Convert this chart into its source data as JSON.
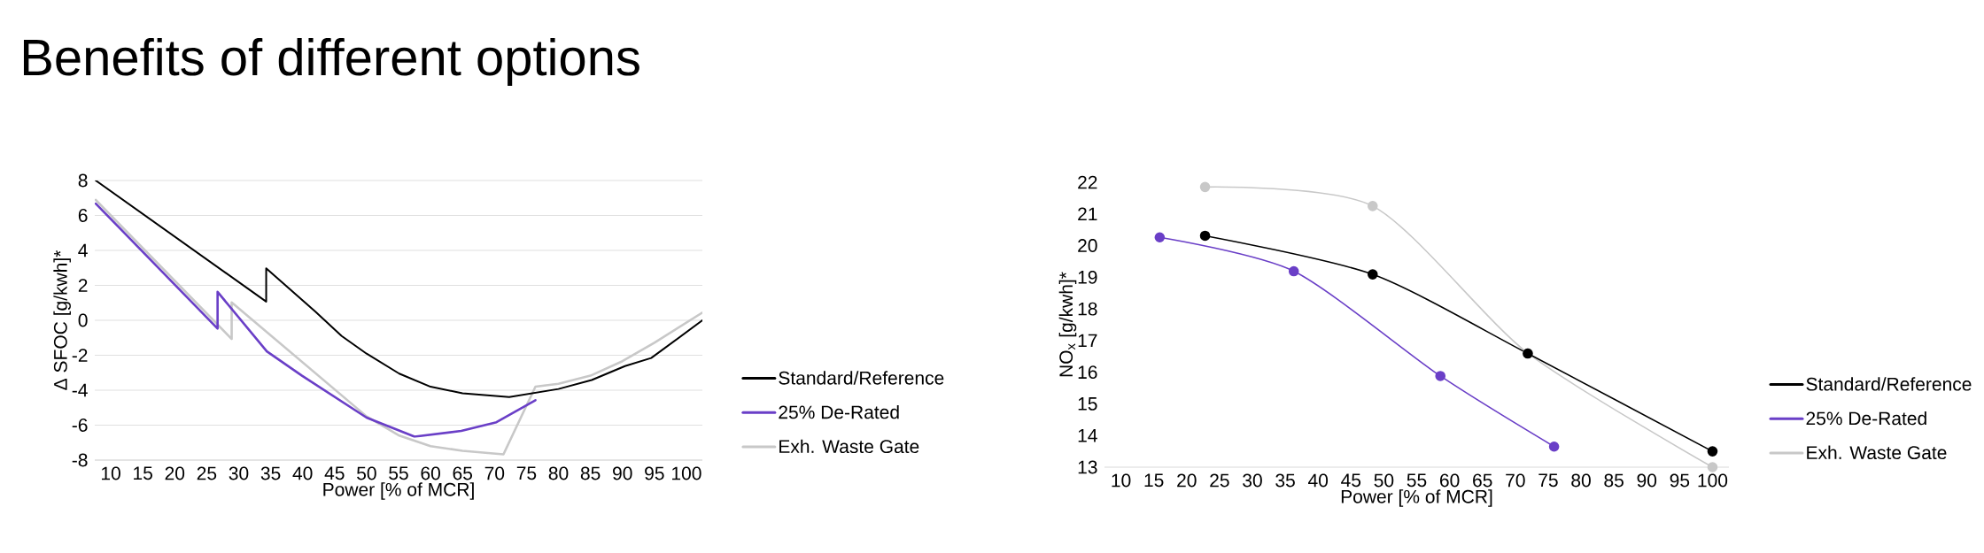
{
  "chart_data": [
    {
      "type": "line",
      "title": "Benefits of different options",
      "xlabel": "Power [% of MCR]",
      "ylabel": "Δ SFOC [g/kwh]*",
      "xlim": [
        7.5,
        102.5
      ],
      "ylim": [
        -8,
        8
      ],
      "xticks": [
        10,
        15,
        20,
        25,
        30,
        35,
        40,
        45,
        50,
        55,
        60,
        65,
        70,
        75,
        80,
        85,
        90,
        95,
        100
      ],
      "yticks": [
        -8,
        -6,
        -4,
        -2,
        0,
        2,
        4,
        6,
        8
      ],
      "grid": "y",
      "legend": "right",
      "marker": "none",
      "series": [
        {
          "name": "Standard/Reference",
          "color": "#000000",
          "x": [
            7.65,
            34.3,
            34.3,
            42,
            46.1,
            50,
            55.1,
            60,
            65,
            72.3,
            80,
            85.2,
            90.4,
            94.5,
            102.5
          ],
          "values": [
            8,
            1.07,
            2.97,
            0.49,
            -0.9,
            -1.91,
            -3.05,
            -3.8,
            -4.18,
            -4.39,
            -3.93,
            -3.42,
            -2.62,
            -2.16,
            0
          ]
        },
        {
          "name": "25% De-Rated",
          "color": "#6a3fc7",
          "x": [
            7.65,
            26.7,
            26.7,
            34.4,
            39.9,
            50,
            57.5,
            64.8,
            70.3,
            76.4
          ],
          "values": [
            6.68,
            -0.47,
            1.63,
            -1.78,
            -3.17,
            -5.57,
            -6.66,
            -6.33,
            -5.83,
            -4.57
          ]
        },
        {
          "name": "Exh. Waste Gate",
          "color": "#c8c8c8",
          "x": [
            7.65,
            28.9,
            28.9,
            50,
            55,
            60,
            65,
            71.4,
            76.4,
            80,
            85,
            90,
            95,
            102.5
          ],
          "values": [
            6.89,
            -1.07,
            1.02,
            -5.5,
            -6.58,
            -7.2,
            -7.47,
            -7.67,
            -3.8,
            -3.63,
            -3.17,
            -2.34,
            -1.28,
            0.44
          ]
        }
      ]
    },
    {
      "type": "line",
      "xlabel": "Power [% of MCR]",
      "ylabel": "NO$_{x}$ [g/kwh]*",
      "xlim": [
        7.5,
        102.5
      ],
      "ylim": [
        13,
        22
      ],
      "xticks": [
        10,
        15,
        20,
        25,
        30,
        35,
        40,
        45,
        50,
        55,
        60,
        65,
        70,
        75,
        80,
        85,
        90,
        95,
        100
      ],
      "yticks": [
        13,
        14,
        15,
        16,
        17,
        18,
        19,
        20,
        21,
        22
      ],
      "grid": false,
      "legend": "right",
      "marker": "circle",
      "series": [
        {
          "name": "Standard/Reference",
          "color": "#000000",
          "x": [
            22.8,
            48.3,
            71.9,
            100
          ],
          "values": [
            20.31,
            19.09,
            16.59,
            13.5
          ]
        },
        {
          "name": "25% De-Rated",
          "color": "#6a3fc7",
          "x": [
            15.9,
            36.3,
            58.6,
            75.9
          ],
          "values": [
            20.26,
            19.19,
            15.88,
            13.65
          ]
        },
        {
          "name": "Exh. Waste Gate",
          "color": "#c8c8c8",
          "x": [
            22.8,
            48.3,
            71.9,
            100
          ],
          "values": [
            21.85,
            21.25,
            16.6,
            13.0
          ]
        }
      ]
    }
  ]
}
